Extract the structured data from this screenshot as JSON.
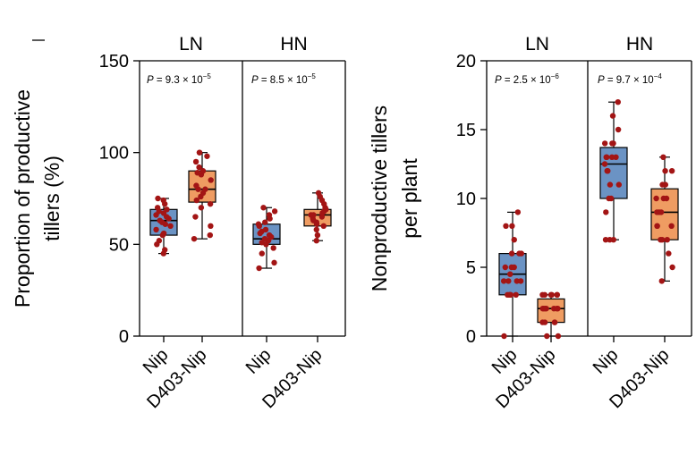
{
  "colors": {
    "nip_box": "#6b93c4",
    "d403_box": "#ef9c62",
    "point": "#a31515",
    "axis": "#000000"
  },
  "chart_data": [
    {
      "type": "box",
      "title": "",
      "ylabel_line1": "Proportion of productive",
      "ylabel_line2": "tillers (%)",
      "ylim": [
        0,
        150
      ],
      "yticks": [
        0,
        50,
        100,
        150
      ],
      "panels": [
        {
          "label": "LN",
          "p_value": "P = 9.3 × 10",
          "p_exp": "−5",
          "groups": [
            {
              "name": "Nip",
              "color": "nip_box",
              "box": {
                "q1": 55,
                "median": 63,
                "q3": 69,
                "whisker_low": 45,
                "whisker_high": 75
              },
              "points": [
                45,
                47,
                50,
                52,
                55,
                56,
                58,
                60,
                61,
                62,
                63,
                64,
                65,
                66,
                67,
                68,
                69,
                70,
                72,
                74,
                75
              ]
            },
            {
              "name": "D403-Nip",
              "color": "d403_box",
              "box": {
                "q1": 73,
                "median": 80,
                "q3": 90,
                "whisker_low": 53,
                "whisker_high": 100
              },
              "points": [
                53,
                55,
                60,
                65,
                70,
                72,
                74,
                76,
                78,
                80,
                80,
                82,
                85,
                88,
                89,
                90,
                92,
                95,
                98,
                100,
                100
              ]
            }
          ]
        },
        {
          "label": "HN",
          "p_value": "P = 8.5 × 10",
          "p_exp": "−5",
          "groups": [
            {
              "name": "Nip",
              "color": "nip_box",
              "box": {
                "q1": 50,
                "median": 53,
                "q3": 61,
                "whisker_low": 37,
                "whisker_high": 70
              },
              "points": [
                37,
                40,
                45,
                48,
                50,
                51,
                52,
                53,
                54,
                55,
                56,
                57,
                58,
                60,
                61,
                62,
                64,
                66,
                68,
                70
              ]
            },
            {
              "name": "D403-Nip",
              "color": "d403_box",
              "box": {
                "q1": 60,
                "median": 66,
                "q3": 69,
                "whisker_low": 52,
                "whisker_high": 78
              },
              "points": [
                52,
                55,
                58,
                60,
                61,
                62,
                63,
                64,
                65,
                66,
                66,
                67,
                68,
                69,
                70,
                72,
                74,
                76,
                78
              ]
            }
          ]
        }
      ]
    },
    {
      "type": "box",
      "title": "",
      "ylabel_line1": "Nonproductive tillers",
      "ylabel_line2": "per plant",
      "ylim": [
        0,
        20
      ],
      "yticks": [
        0,
        5,
        10,
        15,
        20
      ],
      "panels": [
        {
          "label": "LN",
          "p_value": "P = 2.5 × 10",
          "p_exp": "−6",
          "groups": [
            {
              "name": "Nip",
              "color": "nip_box",
              "box": {
                "q1": 3,
                "median": 4.5,
                "q3": 6,
                "whisker_low": 0,
                "whisker_high": 9
              },
              "points": [
                0,
                3,
                3,
                3,
                3,
                3,
                4,
                4,
                4,
                4,
                4.5,
                5,
                5,
                5,
                6,
                6,
                6,
                7,
                8,
                8,
                9
              ]
            },
            {
              "name": "D403-Nip",
              "color": "d403_box",
              "box": {
                "q1": 1,
                "median": 2,
                "q3": 2.7,
                "whisker_low": 0,
                "whisker_high": 3
              },
              "points": [
                0,
                0,
                1,
                1,
                1,
                1,
                2,
                2,
                2,
                2,
                2,
                2,
                2,
                3,
                3,
                3,
                3,
                3,
                3
              ]
            }
          ]
        },
        {
          "label": "HN",
          "p_value": "P = 9.7 × 10",
          "p_exp": "−4",
          "groups": [
            {
              "name": "Nip",
              "color": "nip_box",
              "box": {
                "q1": 10,
                "median": 12.5,
                "q3": 13.7,
                "whisker_low": 7,
                "whisker_high": 17
              },
              "points": [
                7,
                7,
                7,
                9,
                10,
                10,
                11,
                11,
                12,
                12,
                12.5,
                13,
                13,
                13,
                13,
                14,
                14,
                14,
                15,
                16,
                17
              ]
            },
            {
              "name": "D403-Nip",
              "color": "d403_box",
              "box": {
                "q1": 7,
                "median": 9,
                "q3": 10.7,
                "whisker_low": 4,
                "whisker_high": 13
              },
              "points": [
                4,
                5,
                6,
                7,
                7,
                7,
                8,
                8,
                8,
                9,
                9,
                9,
                10,
                10,
                10,
                11,
                11,
                12,
                12,
                13
              ]
            }
          ]
        }
      ]
    }
  ]
}
